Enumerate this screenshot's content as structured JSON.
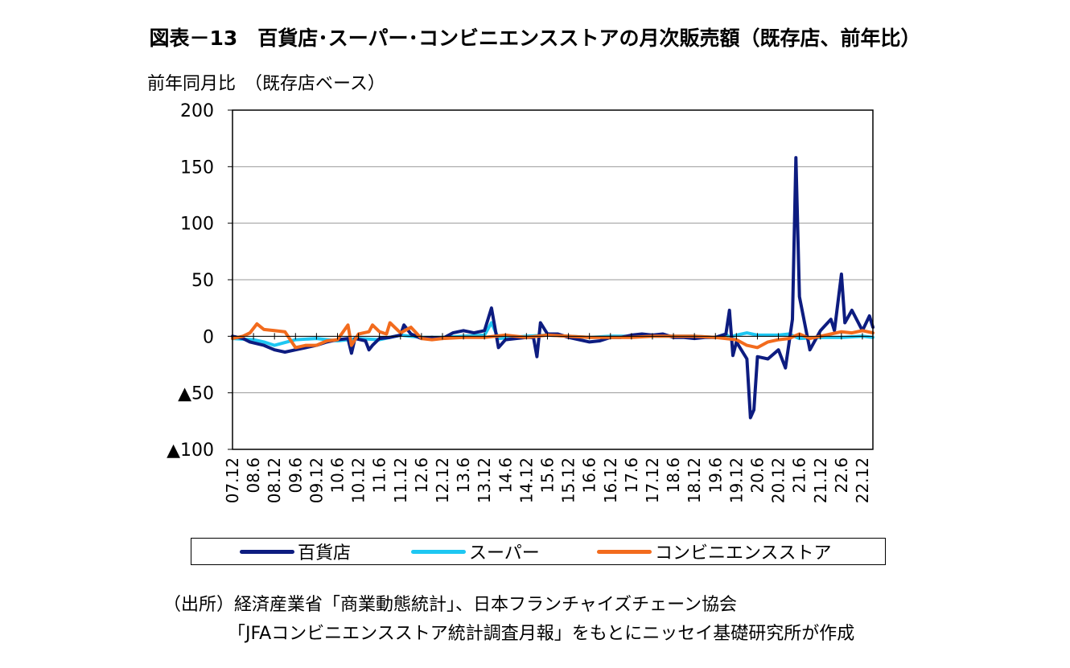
{
  "chart_data": {
    "type": "line",
    "title": "図表－13　百貨店･スーパー･コンビニエンスストアの月次販売額（既存店、前年比）",
    "ylabel": "前年同月比　（既存店ベース）",
    "ylim": [
      -100,
      200
    ],
    "yticks": [
      200,
      150,
      100,
      50,
      0,
      -50,
      -100
    ],
    "ytick_labels": [
      "200",
      "150",
      "100",
      "50",
      "0",
      "▲50",
      "▲100"
    ],
    "xtick_labels": [
      "07.12",
      "08.6",
      "08.12",
      "09.6",
      "09.12",
      "10.6",
      "10.12",
      "11.6",
      "11.12",
      "12.6",
      "12.12",
      "13.6",
      "13.12",
      "14.6",
      "14.12",
      "15.6",
      "15.12",
      "16.6",
      "16.12",
      "17.6",
      "17.12",
      "18.6",
      "18.12",
      "19.6",
      "19.12",
      "20.6",
      "20.12",
      "21.6",
      "21.12",
      "22.6",
      "22.12"
    ],
    "x_start": "2007.12",
    "x_end": "2023.3",
    "grid": "horizontal",
    "legend_position": "bottom",
    "series": [
      {
        "name": "百貨店",
        "color": "#0d1c80",
        "points": [
          [
            "07.12",
            0
          ],
          [
            "08.3",
            -2
          ],
          [
            "08.5",
            -5
          ],
          [
            "08.9",
            -8
          ],
          [
            "08.12",
            -12
          ],
          [
            "09.3",
            -14
          ],
          [
            "09.6",
            -12
          ],
          [
            "09.9",
            -10
          ],
          [
            "09.12",
            -8
          ],
          [
            "10.3",
            -5
          ],
          [
            "10.6",
            -3
          ],
          [
            "10.9",
            -2
          ],
          [
            "10.10",
            -15
          ],
          [
            "10.11",
            -2
          ],
          [
            "11.2",
            -4
          ],
          [
            "11.3",
            -12
          ],
          [
            "11.4",
            -8
          ],
          [
            "11.6",
            -2
          ],
          [
            "11.9",
            -1
          ],
          [
            "11.12",
            1
          ],
          [
            "12.1",
            10
          ],
          [
            "12.3",
            2
          ],
          [
            "12.6",
            -2
          ],
          [
            "12.9",
            -1
          ],
          [
            "12.12",
            -2
          ],
          [
            "13.3",
            3
          ],
          [
            "13.6",
            5
          ],
          [
            "13.9",
            3
          ],
          [
            "13.12",
            5
          ],
          [
            "14.2",
            25
          ],
          [
            "14.4",
            -10
          ],
          [
            "14.6",
            -3
          ],
          [
            "14.9",
            -2
          ],
          [
            "14.12",
            -1
          ],
          [
            "15.2",
            -1
          ],
          [
            "15.3",
            -18
          ],
          [
            "15.4",
            12
          ],
          [
            "15.6",
            2
          ],
          [
            "15.9",
            2
          ],
          [
            "15.12",
            -1
          ],
          [
            "16.3",
            -3
          ],
          [
            "16.6",
            -5
          ],
          [
            "16.9",
            -4
          ],
          [
            "16.12",
            -1
          ],
          [
            "17.3",
            -1
          ],
          [
            "17.6",
            1
          ],
          [
            "17.9",
            2
          ],
          [
            "17.12",
            1
          ],
          [
            "18.3",
            2
          ],
          [
            "18.6",
            -1
          ],
          [
            "18.9",
            -1
          ],
          [
            "18.12",
            -2
          ],
          [
            "19.3",
            -1
          ],
          [
            "19.6",
            -1
          ],
          [
            "19.9",
            2
          ],
          [
            "19.10",
            23
          ],
          [
            "19.11",
            -17
          ],
          [
            "19.12",
            -5
          ],
          [
            "20.3",
            -20
          ],
          [
            "20.4",
            -72
          ],
          [
            "20.5",
            -65
          ],
          [
            "20.6",
            -18
          ],
          [
            "20.9",
            -20
          ],
          [
            "20.12",
            -12
          ],
          [
            "21.2",
            -28
          ],
          [
            "21.4",
            15
          ],
          [
            "21.5",
            158
          ],
          [
            "21.6",
            35
          ],
          [
            "21.9",
            -12
          ],
          [
            "21.12",
            5
          ],
          [
            "22.3",
            15
          ],
          [
            "22.4",
            5
          ],
          [
            "22.6",
            55
          ],
          [
            "22.7",
            12
          ],
          [
            "22.9",
            23
          ],
          [
            "22.12",
            5
          ],
          [
            "23.2",
            18
          ],
          [
            "23.3",
            8
          ]
        ]
      },
      {
        "name": "スーパー",
        "color": "#1ec7f2",
        "points": [
          [
            "07.12",
            -2
          ],
          [
            "08.6",
            -3
          ],
          [
            "08.9",
            -5
          ],
          [
            "08.12",
            -8
          ],
          [
            "09.6",
            -3
          ],
          [
            "09.12",
            -2
          ],
          [
            "10.6",
            -4
          ],
          [
            "10.12",
            -2
          ],
          [
            "11.6",
            -3
          ],
          [
            "11.12",
            1
          ],
          [
            "12.6",
            -1
          ],
          [
            "12.12",
            -1
          ],
          [
            "13.6",
            0
          ],
          [
            "13.12",
            1
          ],
          [
            "14.2",
            12
          ],
          [
            "14.4",
            -2
          ],
          [
            "14.12",
            0
          ],
          [
            "15.6",
            1
          ],
          [
            "15.12",
            0
          ],
          [
            "16.6",
            -1
          ],
          [
            "16.12",
            0
          ],
          [
            "17.6",
            0
          ],
          [
            "17.12",
            0
          ],
          [
            "18.6",
            0
          ],
          [
            "18.12",
            0
          ],
          [
            "19.6",
            -1
          ],
          [
            "19.9",
            2
          ],
          [
            "19.10",
            -1
          ],
          [
            "19.12",
            1
          ],
          [
            "20.3",
            3
          ],
          [
            "20.6",
            1
          ],
          [
            "20.12",
            1
          ],
          [
            "21.3",
            2
          ],
          [
            "21.6",
            -2
          ],
          [
            "21.12",
            -1
          ],
          [
            "22.6",
            -1
          ],
          [
            "22.12",
            0
          ],
          [
            "23.3",
            -1
          ]
        ]
      },
      {
        "name": "コンビニエンスストア",
        "color": "#f26b1d",
        "points": [
          [
            "07.12",
            -2
          ],
          [
            "08.3",
            0
          ],
          [
            "08.5",
            3
          ],
          [
            "08.7",
            11
          ],
          [
            "08.9",
            6
          ],
          [
            "08.12",
            5
          ],
          [
            "09.3",
            4
          ],
          [
            "09.6",
            -10
          ],
          [
            "09.9",
            -8
          ],
          [
            "09.12",
            -8
          ],
          [
            "10.3",
            -4
          ],
          [
            "10.6",
            -3
          ],
          [
            "10.9",
            10
          ],
          [
            "10.10",
            -8
          ],
          [
            "10.12",
            2
          ],
          [
            "11.3",
            4
          ],
          [
            "11.4",
            10
          ],
          [
            "11.6",
            4
          ],
          [
            "11.8",
            2
          ],
          [
            "11.9",
            12
          ],
          [
            "11.12",
            3
          ],
          [
            "12.3",
            8
          ],
          [
            "12.6",
            -2
          ],
          [
            "12.9",
            -3
          ],
          [
            "12.12",
            -2
          ],
          [
            "13.6",
            -1
          ],
          [
            "13.12",
            -1
          ],
          [
            "14.6",
            1
          ],
          [
            "14.12",
            -1
          ],
          [
            "15.6",
            1
          ],
          [
            "15.12",
            0
          ],
          [
            "16.6",
            -1
          ],
          [
            "16.12",
            -1
          ],
          [
            "17.6",
            -1
          ],
          [
            "17.12",
            0
          ],
          [
            "18.6",
            0
          ],
          [
            "18.12",
            0
          ],
          [
            "19.6",
            -1
          ],
          [
            "19.12",
            -3
          ],
          [
            "20.3",
            -8
          ],
          [
            "20.6",
            -10
          ],
          [
            "20.9",
            -5
          ],
          [
            "20.12",
            -3
          ],
          [
            "21.3",
            -2
          ],
          [
            "21.6",
            2
          ],
          [
            "21.9",
            -2
          ],
          [
            "21.12",
            0
          ],
          [
            "22.3",
            2
          ],
          [
            "22.6",
            4
          ],
          [
            "22.9",
            3
          ],
          [
            "22.12",
            5
          ],
          [
            "23.3",
            3
          ]
        ]
      }
    ]
  },
  "legend": {
    "items": [
      "百貨店",
      "スーパー",
      "コンビニエンスストア"
    ]
  },
  "source": {
    "line1": "（出所）経済産業省「商業動態統計」、日本フランチャイズチェーン協会",
    "line2": "「JFAコンビニエンスストア統計調査月報」をもとにニッセイ基礎研究所が作成"
  }
}
